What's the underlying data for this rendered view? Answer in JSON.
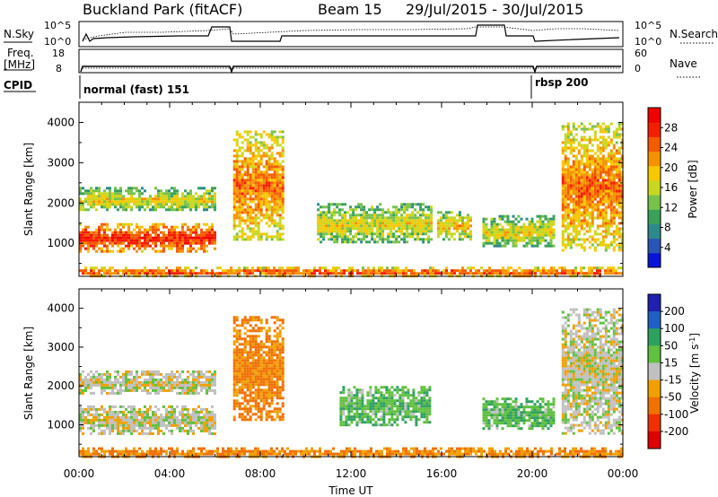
{
  "header": {
    "station": "Buckland Park (fitACF)",
    "beam": "Beam 15",
    "dates": "29/Jul/2015 - 30/Jul/2015"
  },
  "top_panels": {
    "nsky_label": "N.Sky",
    "nsearch_label": "N.Search",
    "nsky_ticks": [
      "10^5",
      "10^0"
    ],
    "nsearch_ticks": [
      "10^5",
      "10^0"
    ],
    "freq_label_1": "Freq.",
    "freq_label_2": "[MHz]",
    "freq_ticks": [
      "18",
      "8"
    ],
    "nave_label": "Nave",
    "nave_ticks": [
      "60",
      "0"
    ],
    "cpid_label": "CPID",
    "cpid_modes": [
      {
        "label": "normal (fast) 151",
        "start_hour": 0
      },
      {
        "label": "rbsp 200",
        "start_hour": 20
      }
    ]
  },
  "chart_data": [
    {
      "type": "heatmap",
      "title": "",
      "xlabel": "Time UT",
      "ylabel": "Slant Range [km]",
      "xlim": [
        0,
        24
      ],
      "ylim": [
        180,
        4500
      ],
      "x_ticks": [
        "00:00",
        "04:00",
        "08:00",
        "12:00",
        "16:00",
        "20:00",
        "00:00"
      ],
      "y_ticks": [
        1000,
        2000,
        3000,
        4000
      ],
      "colorbar": {
        "label": "Power [dB]",
        "range": [
          0,
          32
        ],
        "ticks": [
          4,
          8,
          12,
          16,
          20,
          24,
          28
        ],
        "colors": [
          "#0a14d8",
          "#2b55b5",
          "#2e8a8a",
          "#3aa05a",
          "#77c24a",
          "#c8d81e",
          "#f6c800",
          "#f59200",
          "#f55a00",
          "#f51e00",
          "#f00000"
        ]
      },
      "regions": [
        {
          "name": "near-range band",
          "t": [
            0,
            24
          ],
          "r": [
            200,
            420
          ],
          "power_db": 26
        },
        {
          "name": "main echo",
          "t": [
            0,
            6.0
          ],
          "r": [
            800,
            1500
          ],
          "power_db": 28
        },
        {
          "name": "upper echo",
          "t": [
            0,
            6.0
          ],
          "r": [
            1800,
            2400
          ],
          "power_db": 18
        },
        {
          "name": "morning rise",
          "t": [
            6.8,
            9.0
          ],
          "r": [
            1100,
            3800
          ],
          "power_db": 24
        },
        {
          "name": "midday patch",
          "t": [
            10.5,
            15.5
          ],
          "r": [
            1000,
            2000
          ],
          "power_db": 18
        },
        {
          "name": "afternoon patch",
          "t": [
            15.8,
            17.3
          ],
          "r": [
            1100,
            1800
          ],
          "power_db": 20
        },
        {
          "name": "evening patch",
          "t": [
            17.8,
            21.0
          ],
          "r": [
            900,
            1700
          ],
          "power_db": 18
        },
        {
          "name": "late echoes",
          "t": [
            21.3,
            24
          ],
          "r": [
            800,
            4000
          ],
          "power_db": 24
        }
      ]
    },
    {
      "type": "heatmap",
      "title": "",
      "xlabel": "Time UT",
      "ylabel": "Slant Range [km]",
      "xlim": [
        0,
        24
      ],
      "ylim": [
        180,
        4500
      ],
      "x_ticks": [
        "00:00",
        "04:00",
        "08:00",
        "12:00",
        "16:00",
        "20:00",
        "00:00"
      ],
      "y_ticks": [
        1000,
        2000,
        3000,
        4000
      ],
      "colorbar": {
        "label": "Velocity [m s^-1]",
        "ticks": [
          "200",
          "100",
          "50",
          "15",
          "-15",
          "-50",
          "-100",
          "-200"
        ],
        "colors": [
          "#2020b0",
          "#2060c0",
          "#30a060",
          "#60c040",
          "#c0c0c0",
          "#f0a000",
          "#f07000",
          "#f03000",
          "#e00000"
        ]
      },
      "regions": [
        {
          "name": "near-range band",
          "t": [
            0,
            24
          ],
          "r": [
            200,
            420
          ],
          "velocity": -50
        },
        {
          "name": "main echo",
          "t": [
            0,
            6.0
          ],
          "r": [
            800,
            1500
          ],
          "velocity": 0
        },
        {
          "name": "upper echo",
          "t": [
            0,
            6.0
          ],
          "r": [
            1800,
            2400
          ],
          "velocity": 0
        },
        {
          "name": "morning rise",
          "t": [
            6.8,
            9.0
          ],
          "r": [
            1100,
            3800
          ],
          "velocity": -60
        },
        {
          "name": "midday patch",
          "t": [
            11.5,
            15.5
          ],
          "r": [
            1000,
            2000
          ],
          "velocity": 40
        },
        {
          "name": "evening patch",
          "t": [
            17.8,
            21.0
          ],
          "r": [
            900,
            1700
          ],
          "velocity": 40
        },
        {
          "name": "late echoes",
          "t": [
            21.3,
            24
          ],
          "r": [
            800,
            4000
          ],
          "velocity": 0
        }
      ]
    }
  ]
}
